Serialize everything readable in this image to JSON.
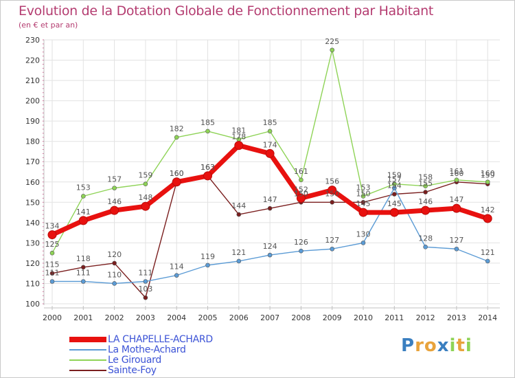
{
  "header": {
    "title": "Evolution de la Dotation Globale de Fonctionnement par Habitant",
    "subtitle": "(en € et par an)"
  },
  "logo": {
    "letters": [
      "P",
      "r",
      "o",
      "x",
      "i",
      "t",
      "i"
    ]
  },
  "chart_data": {
    "type": "line",
    "title": "Evolution de la Dotation Globale de Fonctionnement par Habitant",
    "subtitle": "(en € et par an)",
    "xlabel": "",
    "ylabel": "",
    "ylim": [
      100,
      230
    ],
    "yticks": [
      100,
      110,
      120,
      130,
      140,
      150,
      160,
      170,
      180,
      190,
      200,
      210,
      220,
      230
    ],
    "categories": [
      "2000",
      "2001",
      "2002",
      "2003",
      "2004",
      "2005",
      "2006",
      "2007",
      "2008",
      "2009",
      "2010",
      "2011",
      "2012",
      "2013",
      "2014"
    ],
    "grid": true,
    "legend_position": "bottom-left",
    "series": [
      {
        "name": "LA CHAPELLE-ACHARD",
        "color": "#e8110f",
        "emphasis": true,
        "values": [
          134,
          141,
          146,
          148,
          160,
          163,
          178,
          174,
          152,
          156,
          145,
          145,
          146,
          147,
          142
        ]
      },
      {
        "name": "La Mothe-Achard",
        "color": "#5b9bd5",
        "emphasis": false,
        "values": [
          111,
          111,
          110,
          111,
          114,
          119,
          121,
          124,
          126,
          127,
          130,
          157,
          128,
          127,
          121
        ]
      },
      {
        "name": "Le Girouard",
        "color": "#8ed356",
        "emphasis": false,
        "values": [
          125,
          153,
          157,
          159,
          182,
          185,
          181,
          185,
          161,
          225,
          153,
          159,
          158,
          161,
          160
        ]
      },
      {
        "name": "Sainte-Foy",
        "color": "#7a1e1e",
        "emphasis": false,
        "values": [
          115,
          118,
          120,
          103,
          160,
          163,
          144,
          147,
          150,
          150,
          150,
          154,
          155,
          160,
          159
        ]
      }
    ]
  }
}
